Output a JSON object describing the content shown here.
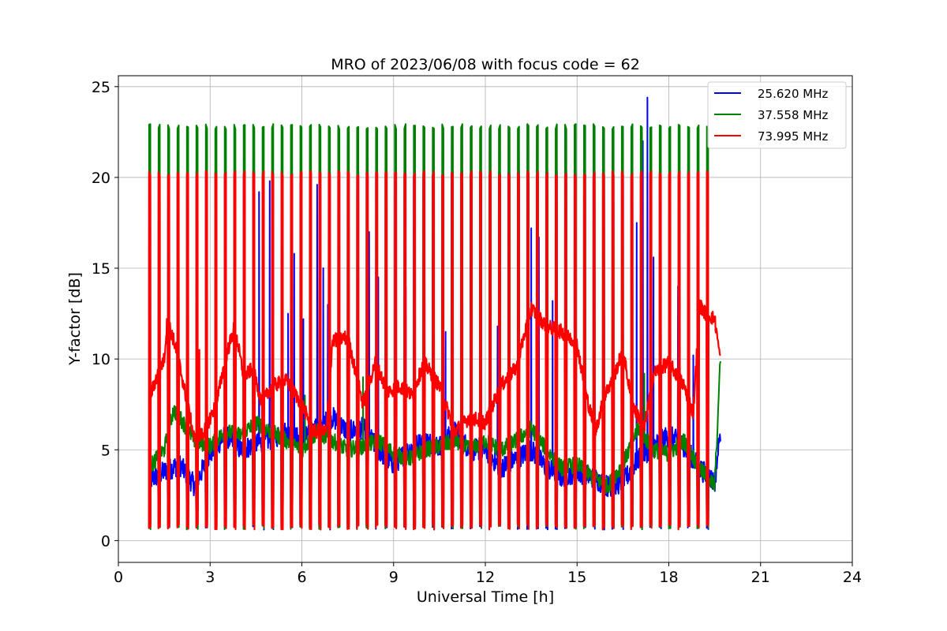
{
  "chart_data": {
    "type": "line",
    "title": "MRO of 2023/06/08 with focus code = 62",
    "xlabel": "Universal Time [h]",
    "ylabel": "Y-factor [dB]",
    "xlim": [
      0,
      24
    ],
    "ylim": [
      -1.2,
      25.6
    ],
    "xticks": [
      0,
      3,
      6,
      9,
      12,
      15,
      18,
      21,
      24
    ],
    "yticks": [
      0,
      5,
      10,
      15,
      20,
      25
    ],
    "grid": true,
    "legend_position": "top-right",
    "pulse_train": {
      "t_start": 1.0,
      "t_end": 19.55,
      "n_pulses": 60,
      "pulse_width": 0.05,
      "low_level": 0.6
    },
    "series": [
      {
        "name": "25.620 MHz",
        "color": "#0000ff",
        "pulse_peak": 20.2,
        "baseline": [
          [
            1.0,
            3.3
          ],
          [
            1.5,
            3.8
          ],
          [
            2.0,
            4.2
          ],
          [
            2.5,
            3.0
          ],
          [
            3.0,
            4.8
          ],
          [
            3.5,
            5.8
          ],
          [
            4.0,
            5.0
          ],
          [
            4.5,
            5.3
          ],
          [
            5.0,
            5.6
          ],
          [
            5.5,
            6.0
          ],
          [
            6.0,
            5.5
          ],
          [
            6.5,
            6.2
          ],
          [
            7.0,
            6.8
          ],
          [
            7.5,
            6.0
          ],
          [
            8.0,
            6.2
          ],
          [
            8.5,
            5.0
          ],
          [
            9.0,
            4.2
          ],
          [
            9.5,
            5.0
          ],
          [
            10.0,
            5.5
          ],
          [
            10.5,
            5.2
          ],
          [
            11.0,
            6.0
          ],
          [
            11.5,
            5.0
          ],
          [
            12.0,
            5.0
          ],
          [
            12.5,
            4.0
          ],
          [
            13.0,
            4.5
          ],
          [
            13.5,
            5.0
          ],
          [
            14.0,
            4.0
          ],
          [
            14.5,
            3.5
          ],
          [
            15.0,
            3.8
          ],
          [
            15.5,
            3.5
          ],
          [
            16.0,
            3.0
          ],
          [
            16.5,
            3.2
          ],
          [
            17.0,
            4.5
          ],
          [
            17.5,
            5.2
          ],
          [
            18.0,
            5.8
          ],
          [
            18.5,
            5.2
          ],
          [
            19.0,
            4.0
          ],
          [
            19.5,
            3.2
          ],
          [
            19.7,
            6.2
          ]
        ],
        "spikes": [
          [
            4.6,
            19.2
          ],
          [
            4.75,
            16.5
          ],
          [
            4.95,
            19.8
          ],
          [
            5.55,
            12.5
          ],
          [
            5.75,
            15.8
          ],
          [
            6.05,
            12.2
          ],
          [
            6.3,
            14.0
          ],
          [
            6.5,
            19.6
          ],
          [
            6.7,
            15.0
          ],
          [
            6.85,
            13.0
          ],
          [
            7.85,
            18.8
          ],
          [
            8.2,
            17.0
          ],
          [
            8.5,
            14.5
          ],
          [
            9.4,
            14.0
          ],
          [
            10.7,
            11.5
          ],
          [
            12.4,
            11.8
          ],
          [
            13.5,
            17.2
          ],
          [
            13.75,
            16.7
          ],
          [
            14.2,
            13.2
          ],
          [
            16.95,
            17.5
          ],
          [
            17.15,
            22.0
          ],
          [
            17.3,
            24.4
          ],
          [
            17.5,
            15.6
          ],
          [
            18.3,
            14.0
          ],
          [
            18.8,
            10.2
          ]
        ]
      },
      {
        "name": "37.558 MHz",
        "color": "#008000",
        "pulse_peak": 22.8,
        "baseline": [
          [
            1.0,
            4.0
          ],
          [
            1.5,
            5.0
          ],
          [
            1.8,
            7.2
          ],
          [
            2.0,
            6.8
          ],
          [
            2.5,
            5.5
          ],
          [
            3.0,
            5.2
          ],
          [
            3.5,
            6.0
          ],
          [
            4.0,
            5.8
          ],
          [
            4.5,
            6.5
          ],
          [
            5.0,
            6.0
          ],
          [
            5.5,
            5.5
          ],
          [
            6.0,
            5.0
          ],
          [
            6.5,
            6.0
          ],
          [
            7.0,
            5.5
          ],
          [
            7.5,
            5.0
          ],
          [
            8.0,
            5.2
          ],
          [
            8.5,
            5.5
          ],
          [
            9.0,
            4.8
          ],
          [
            9.5,
            4.5
          ],
          [
            10.0,
            5.0
          ],
          [
            10.5,
            5.2
          ],
          [
            11.0,
            5.5
          ],
          [
            11.5,
            5.0
          ],
          [
            12.0,
            5.5
          ],
          [
            12.5,
            5.0
          ],
          [
            13.0,
            5.5
          ],
          [
            13.5,
            6.2
          ],
          [
            14.0,
            5.0
          ],
          [
            14.5,
            4.0
          ],
          [
            15.0,
            4.2
          ],
          [
            15.5,
            3.5
          ],
          [
            16.0,
            3.0
          ],
          [
            16.5,
            4.2
          ],
          [
            17.0,
            6.2
          ],
          [
            17.5,
            5.0
          ],
          [
            18.0,
            4.8
          ],
          [
            18.5,
            5.5
          ],
          [
            19.0,
            4.0
          ],
          [
            19.5,
            3.0
          ],
          [
            19.7,
            10.4
          ]
        ],
        "spikes": [
          [
            6.1,
            8.0
          ],
          [
            8.0,
            9.0
          ],
          [
            17.2,
            9.2
          ]
        ]
      },
      {
        "name": "73.995 MHz",
        "color": "#ff0000",
        "pulse_peak": 20.2,
        "baseline": [
          [
            1.0,
            7.8
          ],
          [
            1.3,
            9.2
          ],
          [
            1.5,
            10.0
          ],
          [
            1.6,
            12.2
          ],
          [
            1.9,
            10.5
          ],
          [
            2.2,
            8.0
          ],
          [
            2.5,
            5.5
          ],
          [
            2.8,
            6.0
          ],
          [
            3.2,
            7.5
          ],
          [
            3.5,
            10.0
          ],
          [
            3.8,
            11.8
          ],
          [
            4.1,
            9.0
          ],
          [
            4.4,
            9.5
          ],
          [
            4.7,
            7.5
          ],
          [
            5.0,
            8.5
          ],
          [
            5.5,
            8.8
          ],
          [
            6.0,
            7.5
          ],
          [
            6.4,
            6.0
          ],
          [
            6.8,
            6.0
          ],
          [
            7.0,
            11.0
          ],
          [
            7.5,
            11.2
          ],
          [
            8.0,
            7.5
          ],
          [
            8.4,
            9.8
          ],
          [
            8.8,
            8.2
          ],
          [
            9.2,
            8.5
          ],
          [
            9.6,
            8.0
          ],
          [
            10.0,
            9.8
          ],
          [
            10.5,
            8.5
          ],
          [
            11.0,
            6.0
          ],
          [
            11.5,
            6.8
          ],
          [
            12.0,
            6.5
          ],
          [
            12.5,
            8.5
          ],
          [
            13.0,
            9.5
          ],
          [
            13.5,
            12.8
          ],
          [
            14.0,
            11.8
          ],
          [
            14.5,
            11.5
          ],
          [
            15.0,
            10.8
          ],
          [
            15.3,
            8.0
          ],
          [
            15.6,
            6.0
          ],
          [
            15.9,
            8.0
          ],
          [
            16.2,
            9.0
          ],
          [
            16.5,
            10.5
          ],
          [
            16.8,
            7.5
          ],
          [
            17.2,
            6.2
          ],
          [
            17.5,
            9.2
          ],
          [
            18.0,
            9.8
          ],
          [
            18.5,
            8.5
          ],
          [
            18.8,
            7.0
          ],
          [
            19.0,
            13.0
          ],
          [
            19.2,
            12.5
          ],
          [
            19.5,
            12.2
          ],
          [
            19.7,
            9.8
          ]
        ],
        "spikes": [
          [
            2.65,
            10.5
          ],
          [
            6.6,
            11.5
          ],
          [
            16.8,
            8.5
          ]
        ]
      }
    ]
  }
}
